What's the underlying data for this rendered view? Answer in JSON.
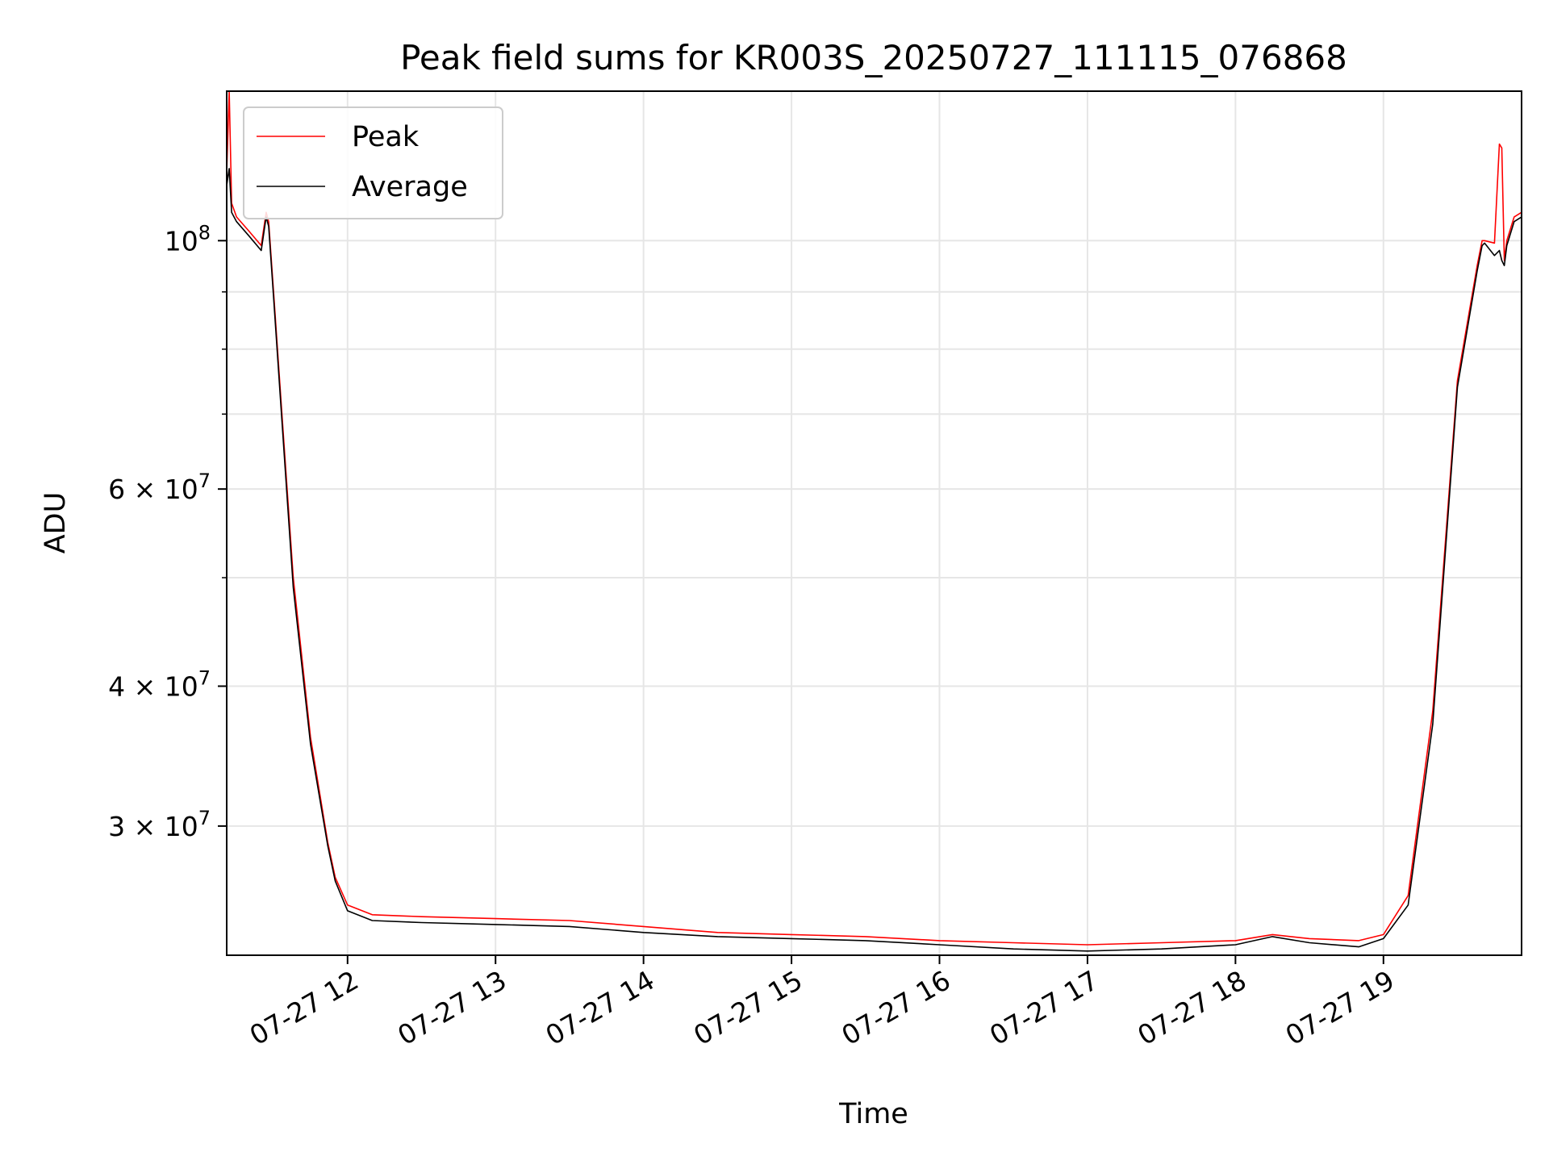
{
  "chart_data": {
    "type": "line",
    "title": "Peak field sums for KR003S_20250727_111115_076868",
    "xlabel": "Time",
    "ylabel": "ADU",
    "yscale": "log",
    "xlim": [
      "2025-07-27 11:11",
      "2025-07-27 19:56"
    ],
    "ylim": [
      23000000,
      136000000
    ],
    "grid": true,
    "legend": "upper left",
    "x_ticks": [
      "2025-07-27 12:00",
      "2025-07-27 13:00",
      "2025-07-27 14:00",
      "2025-07-27 15:00",
      "2025-07-27 16:00",
      "2025-07-27 17:00",
      "2025-07-27 18:00",
      "2025-07-27 19:00"
    ],
    "x_tick_labels": [
      "07-27 12",
      "07-27 13",
      "07-27 14",
      "07-27 15",
      "07-27 16",
      "07-27 17",
      "07-27 18",
      "07-27 19"
    ],
    "y_major_ticks": [
      {
        "value": 100000000,
        "base": "10",
        "exp": "8"
      },
      {
        "value": 60000000,
        "base": "6 × 10",
        "exp": "7"
      },
      {
        "value": 40000000,
        "base": "4 × 10",
        "exp": "7"
      },
      {
        "value": 30000000,
        "base": "3 × 10",
        "exp": "7"
      }
    ],
    "y_minor_ticks": [
      50000000,
      70000000,
      80000000,
      90000000
    ],
    "series": [
      {
        "name": "Peak",
        "color": "#ff0000",
        "x": [
          "2025-07-27 11:11",
          "2025-07-27 11:12",
          "2025-07-27 11:13",
          "2025-07-27 11:15",
          "2025-07-27 11:20",
          "2025-07-27 11:25",
          "2025-07-27 11:27",
          "2025-07-27 11:28",
          "2025-07-27 11:30",
          "2025-07-27 11:33",
          "2025-07-27 11:38",
          "2025-07-27 11:45",
          "2025-07-27 11:52",
          "2025-07-27 11:55",
          "2025-07-27 12:00",
          "2025-07-27 12:10",
          "2025-07-27 12:30",
          "2025-07-27 13:00",
          "2025-07-27 13:30",
          "2025-07-27 14:00",
          "2025-07-27 14:30",
          "2025-07-27 15:00",
          "2025-07-27 15:30",
          "2025-07-27 16:00",
          "2025-07-27 16:30",
          "2025-07-27 17:00",
          "2025-07-27 17:30",
          "2025-07-27 18:00",
          "2025-07-27 18:15",
          "2025-07-27 18:30",
          "2025-07-27 18:50",
          "2025-07-27 19:00",
          "2025-07-27 19:10",
          "2025-07-27 19:20",
          "2025-07-27 19:30",
          "2025-07-27 19:38",
          "2025-07-27 19:40",
          "2025-07-27 19:41",
          "2025-07-27 19:45",
          "2025-07-27 19:47",
          "2025-07-27 19:48",
          "2025-07-27 19:49",
          "2025-07-27 19:50",
          "2025-07-27 19:53",
          "2025-07-27 19:56"
        ],
        "values": [
          115000000,
          136000000,
          108000000,
          105000000,
          102000000,
          99000000,
          106000000,
          104000000,
          90000000,
          72000000,
          50000000,
          36000000,
          29000000,
          27000000,
          25500000,
          25000000,
          24900000,
          24800000,
          24700000,
          24400000,
          24100000,
          24000000,
          23900000,
          23700000,
          23600000,
          23500000,
          23600000,
          23700000,
          24000000,
          23800000,
          23700000,
          24000000,
          26000000,
          38000000,
          75000000,
          95000000,
          100000000,
          100000000,
          99500000,
          122000000,
          121000000,
          96000000,
          100000000,
          105000000,
          106000000
        ]
      },
      {
        "name": "Average",
        "color": "#000000",
        "x": [
          "2025-07-27 11:11",
          "2025-07-27 11:12",
          "2025-07-27 11:13",
          "2025-07-27 11:15",
          "2025-07-27 11:20",
          "2025-07-27 11:25",
          "2025-07-27 11:27",
          "2025-07-27 11:28",
          "2025-07-27 11:30",
          "2025-07-27 11:33",
          "2025-07-27 11:38",
          "2025-07-27 11:45",
          "2025-07-27 11:52",
          "2025-07-27 11:55",
          "2025-07-27 12:00",
          "2025-07-27 12:10",
          "2025-07-27 12:30",
          "2025-07-27 13:00",
          "2025-07-27 13:30",
          "2025-07-27 14:00",
          "2025-07-27 14:30",
          "2025-07-27 15:00",
          "2025-07-27 15:30",
          "2025-07-27 16:00",
          "2025-07-27 16:30",
          "2025-07-27 17:00",
          "2025-07-27 17:30",
          "2025-07-27 18:00",
          "2025-07-27 18:15",
          "2025-07-27 18:30",
          "2025-07-27 18:50",
          "2025-07-27 19:00",
          "2025-07-27 19:10",
          "2025-07-27 19:20",
          "2025-07-27 19:30",
          "2025-07-27 19:38",
          "2025-07-27 19:40",
          "2025-07-27 19:41",
          "2025-07-27 19:45",
          "2025-07-27 19:47",
          "2025-07-27 19:48",
          "2025-07-27 19:49",
          "2025-07-27 19:50",
          "2025-07-27 19:53",
          "2025-07-27 19:56"
        ],
        "values": [
          112000000,
          116000000,
          106000000,
          104000000,
          101000000,
          98000000,
          105000000,
          103000000,
          89000000,
          71000000,
          49000000,
          35500000,
          28800000,
          26800000,
          25200000,
          24700000,
          24600000,
          24500000,
          24400000,
          24100000,
          23900000,
          23800000,
          23700000,
          23500000,
          23300000,
          23200000,
          23300000,
          23500000,
          23900000,
          23600000,
          23400000,
          23800000,
          25500000,
          37000000,
          74000000,
          94000000,
          99000000,
          99500000,
          97000000,
          98000000,
          96000000,
          95000000,
          99000000,
          104000000,
          105000000
        ]
      }
    ]
  }
}
